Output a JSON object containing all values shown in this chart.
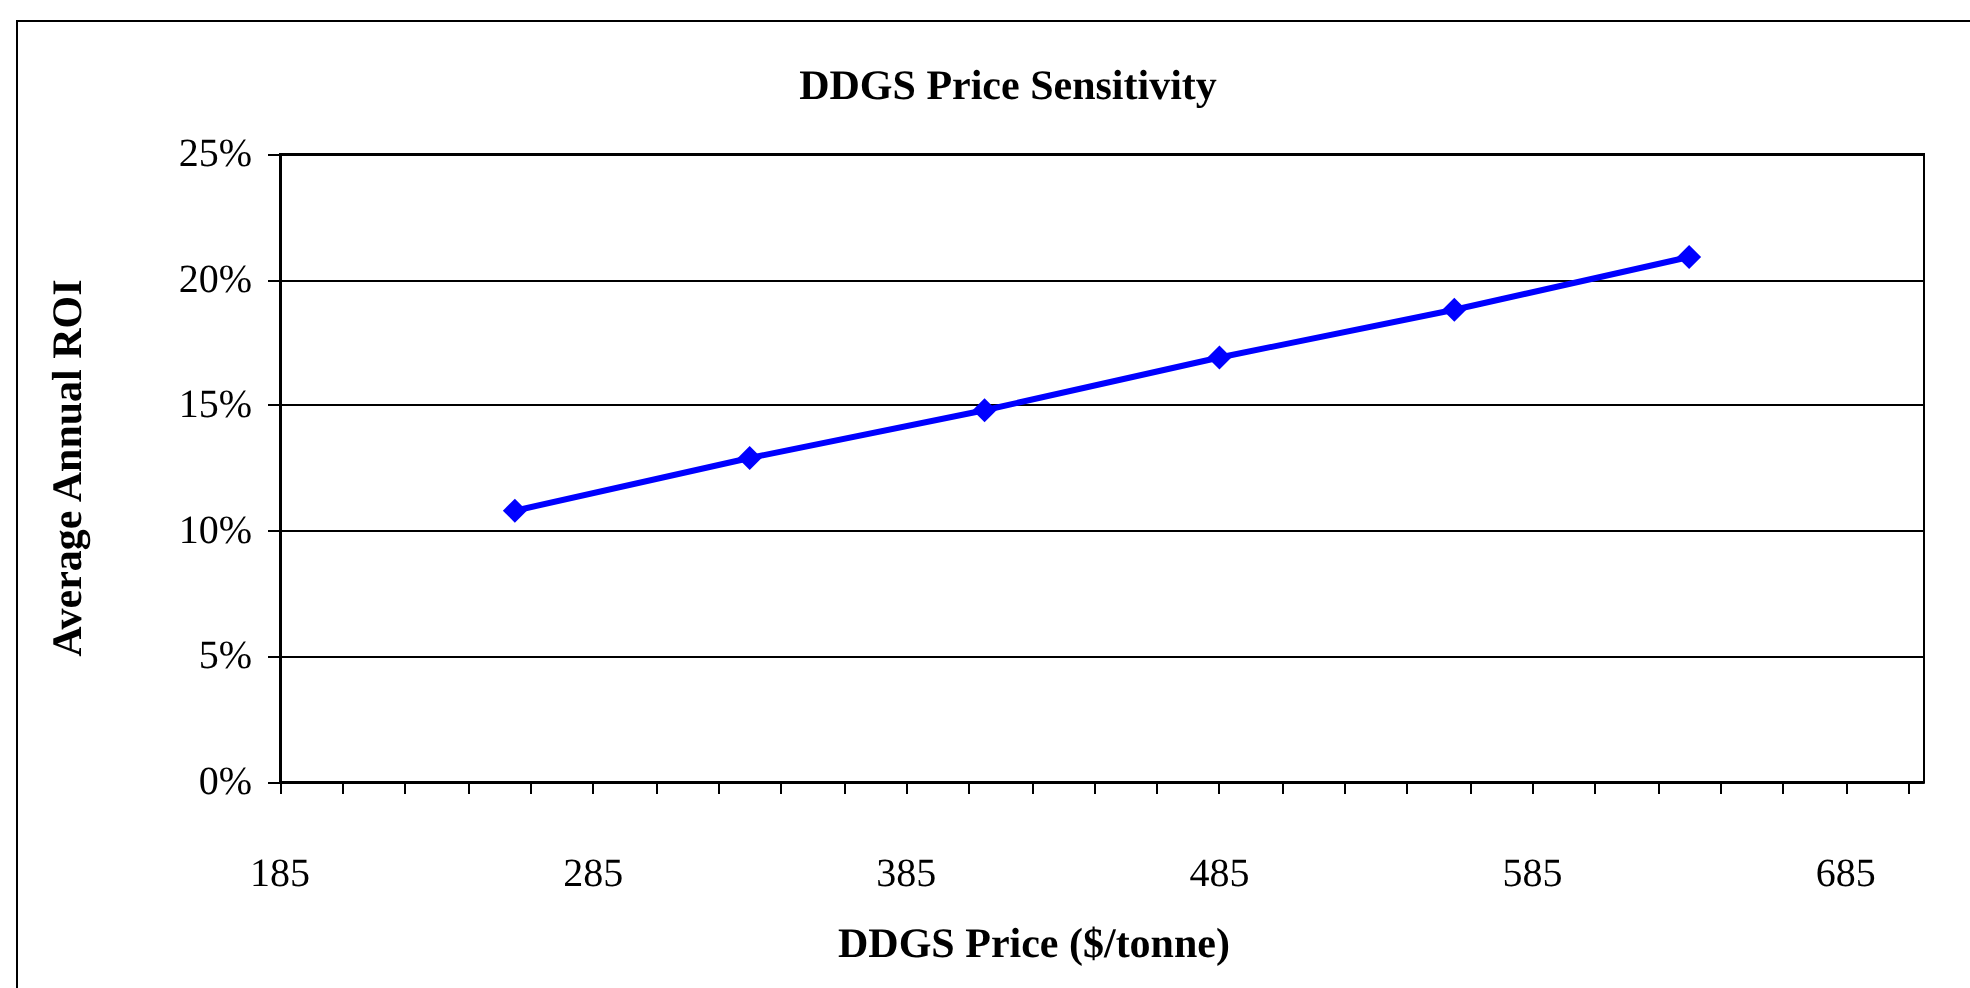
{
  "chart_data": {
    "type": "line",
    "title": "DDGS Price Sensitivity",
    "xlabel": "DDGS Price ($/tonne)",
    "ylabel": "Average Annual ROI",
    "x": [
      260,
      335,
      410,
      485,
      560,
      635
    ],
    "series": [
      {
        "color": "#0000ff",
        "values": [
          10.8,
          12.9,
          14.8,
          16.9,
          18.8,
          20.9
        ]
      }
    ],
    "xlim": [
      185,
      710
    ],
    "xticks": [
      185,
      {
        "value": 205,
        "label": null
      },
      {
        "value": 225,
        "label": null
      },
      {
        "value": 245,
        "label": null
      },
      {
        "value": 265,
        "label": null
      },
      285,
      {
        "value": 305,
        "label": null
      },
      {
        "value": 325,
        "label": null
      },
      {
        "value": 345,
        "label": null
      },
      {
        "value": 365,
        "label": null
      },
      385,
      {
        "value": 405,
        "label": null
      },
      {
        "value": 425,
        "label": null
      },
      {
        "value": 445,
        "label": null
      },
      {
        "value": 465,
        "label": null
      },
      485,
      {
        "value": 505,
        "label": null
      },
      {
        "value": 525,
        "label": null
      },
      {
        "value": 545,
        "label": null
      },
      {
        "value": 565,
        "label": null
      },
      585,
      {
        "value": 605,
        "label": null
      },
      {
        "value": 625,
        "label": null
      },
      {
        "value": 645,
        "label": null
      },
      {
        "value": 665,
        "label": null
      },
      685,
      {
        "value": 705,
        "label": null
      }
    ],
    "ylim": [
      0,
      25
    ],
    "yticks": [
      {
        "value": 0,
        "label": "0%"
      },
      {
        "value": 5,
        "label": "5%"
      },
      {
        "value": 10,
        "label": "10%"
      },
      {
        "value": 15,
        "label": "15%"
      },
      {
        "value": 20,
        "label": "20%"
      },
      {
        "value": 25,
        "label": "25%"
      }
    ],
    "grid": "y",
    "marker": "diamond",
    "line_style": "solid"
  }
}
